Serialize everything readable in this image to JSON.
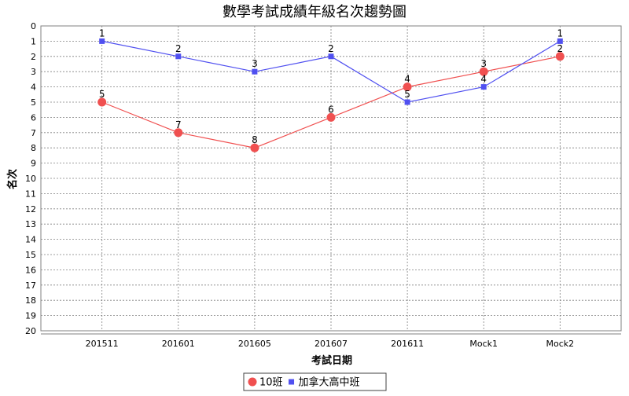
{
  "chart_data": {
    "type": "line",
    "title": "數學考試成績年級名次趨勢圖",
    "xlabel": "考試日期",
    "ylabel": "名次",
    "categories": [
      "201511",
      "201601",
      "201605",
      "201607",
      "201611",
      "Mock1",
      "Mock2"
    ],
    "ylim": [
      0,
      20
    ],
    "y_inverted": true,
    "y_ticks": [
      "0",
      "1",
      "2",
      "3",
      "4",
      "5",
      "6",
      "7",
      "8",
      "9",
      "10",
      "11",
      "12",
      "13",
      "14",
      "15",
      "16",
      "17",
      "18",
      "19",
      "20"
    ],
    "grid": true,
    "legend_position": "bottom",
    "series": [
      {
        "name": "10班",
        "values": [
          5,
          7,
          8,
          6,
          4,
          3,
          2
        ],
        "labels": [
          "5",
          "7",
          "8",
          "6",
          "4",
          "3",
          "2"
        ],
        "color": "#f05050",
        "marker": "circle"
      },
      {
        "name": "加拿大高中班",
        "values": [
          1,
          2,
          3,
          2,
          5,
          4,
          1
        ],
        "labels": [
          "1",
          "2",
          "3",
          "2",
          "5",
          "4",
          "1"
        ],
        "color": "#5050f0",
        "marker": "square"
      }
    ]
  }
}
